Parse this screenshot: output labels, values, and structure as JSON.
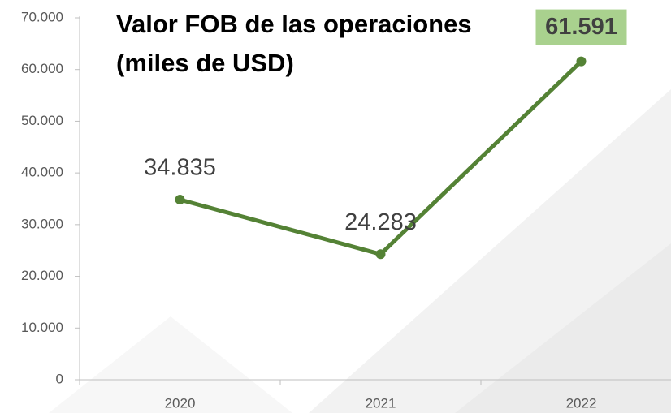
{
  "chart_data": {
    "type": "line",
    "title": [
      "Valor FOB de las operaciones",
      "(miles de USD)"
    ],
    "categories": [
      "2020",
      "2021",
      "2022"
    ],
    "values": [
      34835,
      24283,
      61591
    ],
    "value_labels": [
      "34.835",
      "24.283",
      "61.591"
    ],
    "color": "#548235",
    "highlight": {
      "index": 2,
      "color": "#a9d18e"
    },
    "ylim": [
      0,
      70000
    ],
    "yticks": [
      0,
      {
        "value": 10000,
        "label": "10.000"
      },
      {
        "value": 20000,
        "label": "20.000"
      },
      {
        "value": 30000,
        "label": "30.000"
      },
      {
        "value": 40000,
        "label": "40.000"
      },
      {
        "value": 50000,
        "label": "50.000"
      },
      {
        "value": 60000,
        "label": "60.000"
      },
      {
        "value": 70000,
        "label": "70.000"
      }
    ],
    "grid": false
  }
}
